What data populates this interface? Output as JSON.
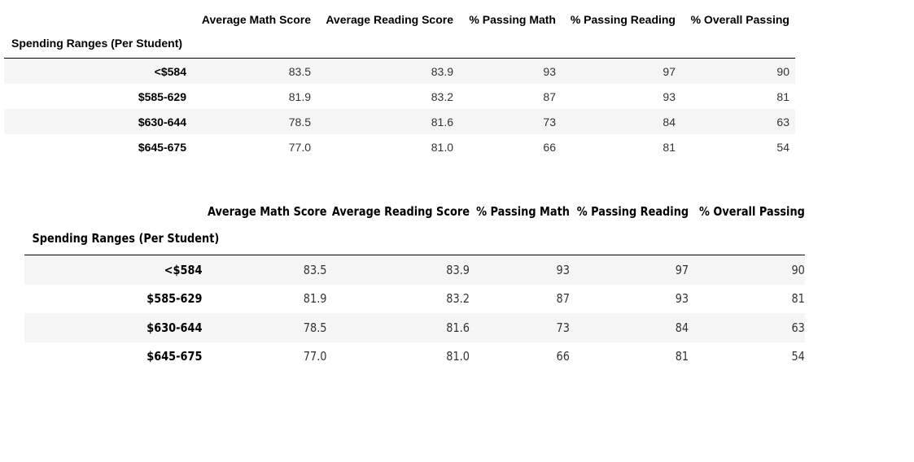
{
  "tables": [
    {
      "columns": [
        "Average Math Score",
        "Average Reading Score",
        "% Passing Math",
        "% Passing Reading",
        "% Overall Passing"
      ],
      "index_name": "Spending Ranges (Per Student)",
      "rows": [
        {
          "label": "<$584",
          "values": [
            "83.5",
            "83.9",
            "93",
            "97",
            "90"
          ]
        },
        {
          "label": "$585-629",
          "values": [
            "81.9",
            "83.2",
            "87",
            "93",
            "81"
          ]
        },
        {
          "label": "$630-644",
          "values": [
            "78.5",
            "81.6",
            "73",
            "84",
            "63"
          ]
        },
        {
          "label": "$645-675",
          "values": [
            "77.0",
            "81.0",
            "66",
            "81",
            "54"
          ]
        }
      ]
    },
    {
      "columns": [
        "Average Math Score",
        "Average Reading Score",
        "% Passing Math",
        "% Passing Reading",
        "% Overall Passing"
      ],
      "index_name": "Spending Ranges (Per Student)",
      "rows": [
        {
          "label": "<$584",
          "values": [
            "83.5",
            "83.9",
            "93",
            "97",
            "90"
          ]
        },
        {
          "label": "$585-629",
          "values": [
            "81.9",
            "83.2",
            "87",
            "93",
            "81"
          ]
        },
        {
          "label": "$630-644",
          "values": [
            "78.5",
            "81.6",
            "73",
            "84",
            "63"
          ]
        },
        {
          "label": "$645-675",
          "values": [
            "77.0",
            "81.0",
            "66",
            "81",
            "54"
          ]
        }
      ]
    }
  ]
}
